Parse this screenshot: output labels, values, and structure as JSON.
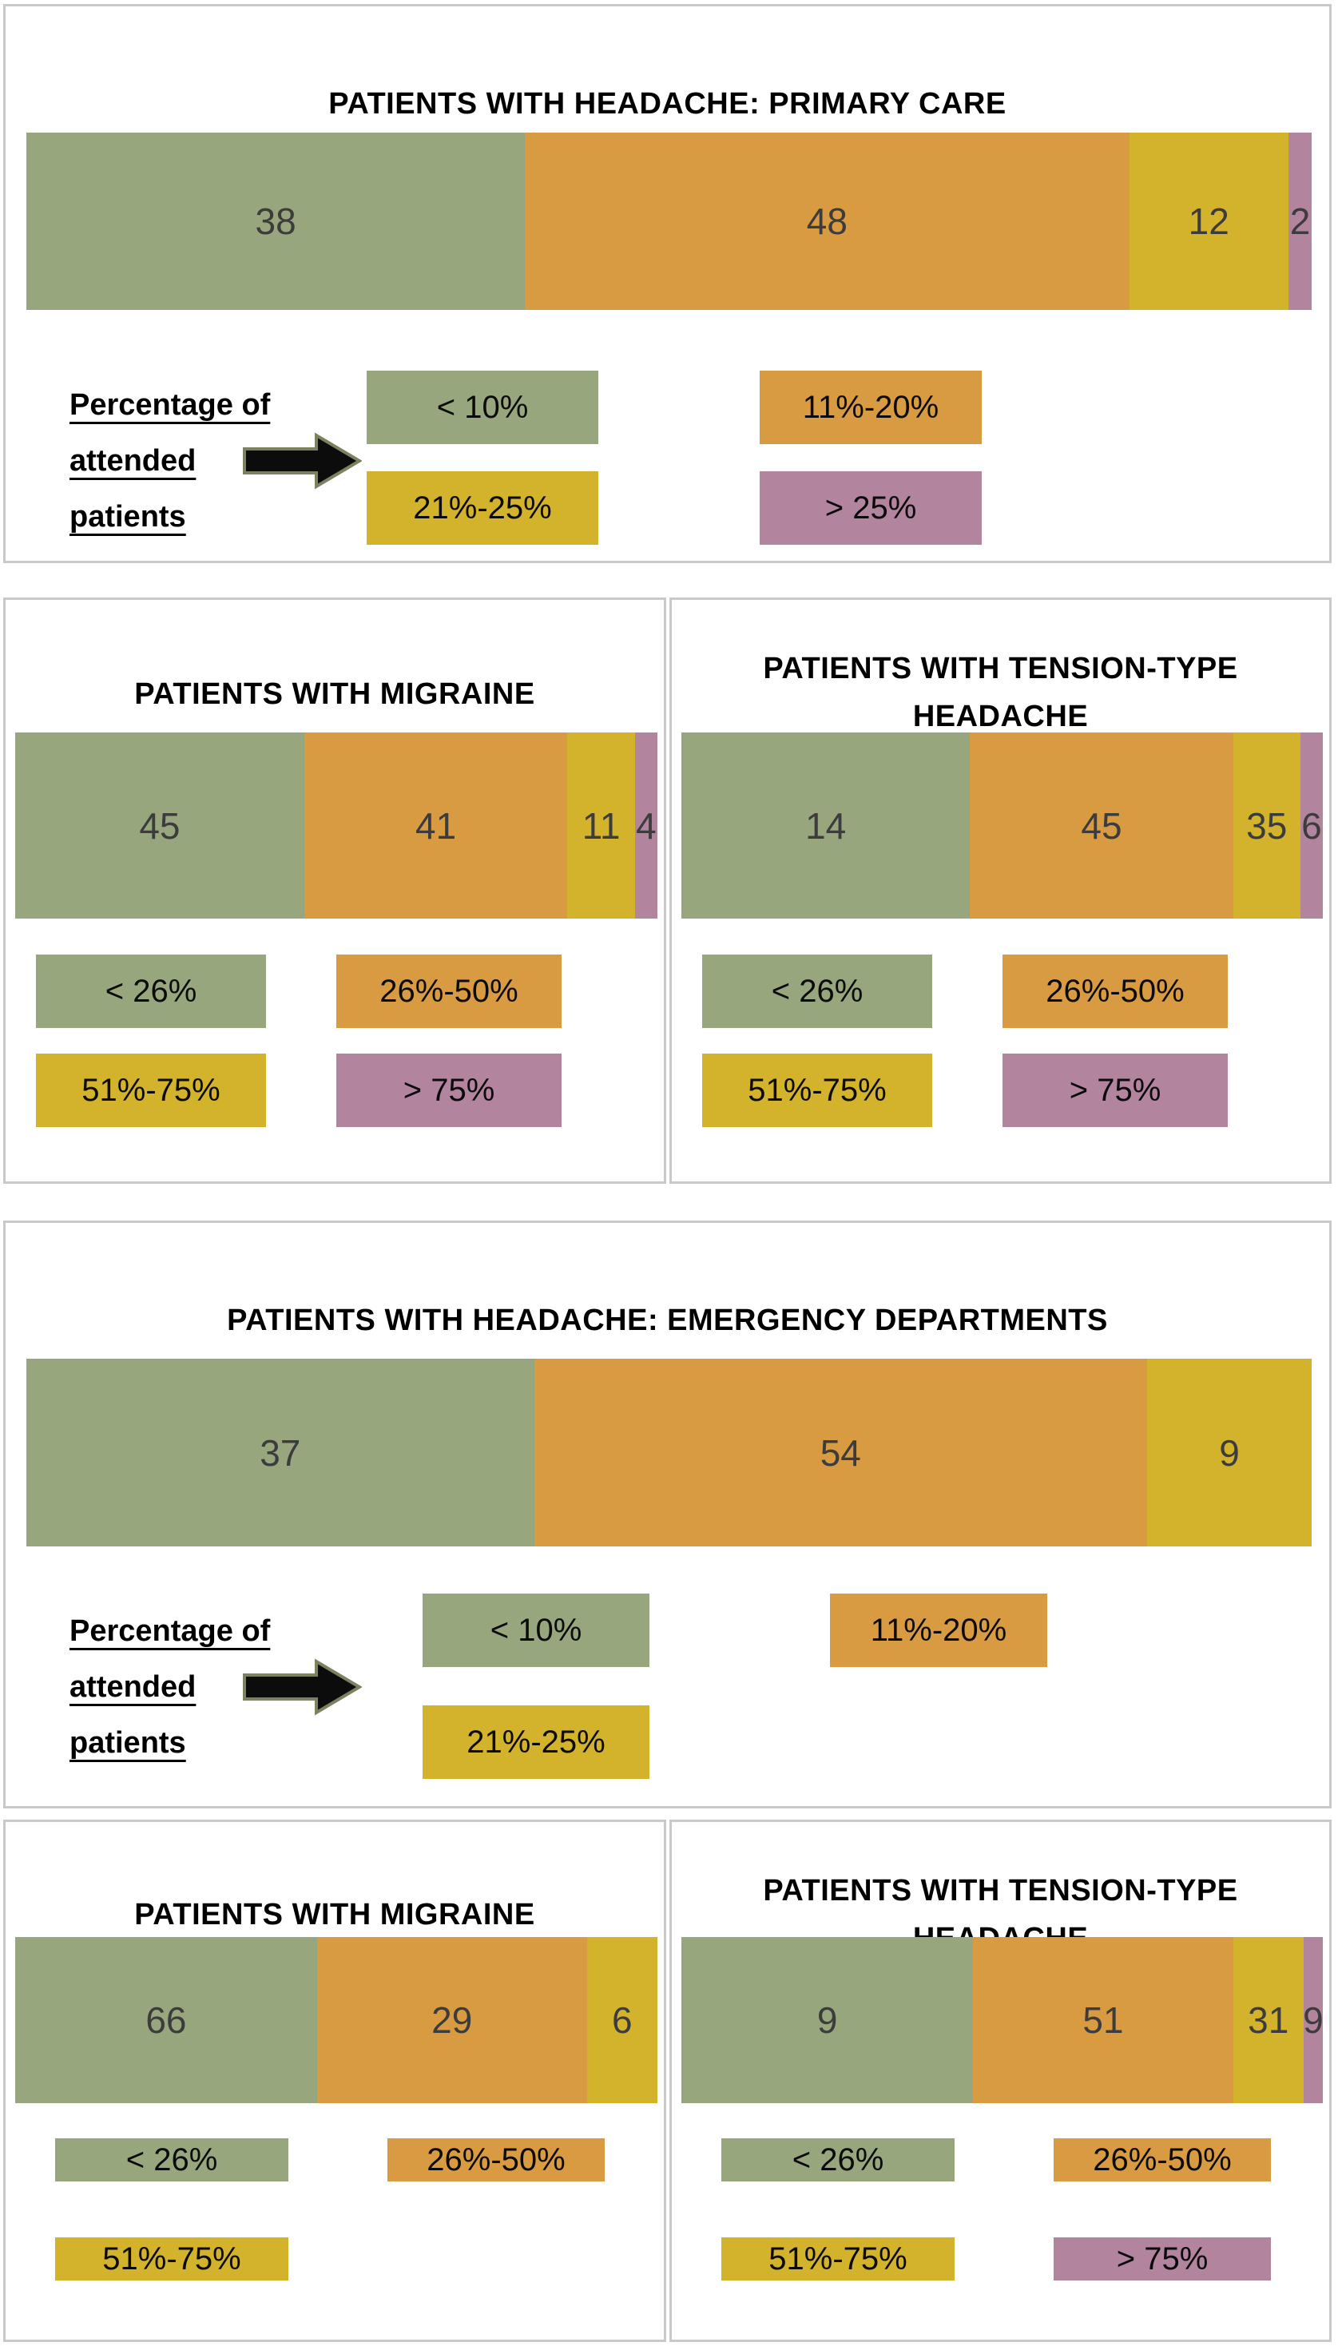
{
  "colors": {
    "green": "#97A67C",
    "orange": "#D89B41",
    "yellow": "#D3B32B",
    "purple": "#B2849E",
    "number_text": "#3C3C3C",
    "arrow_fill": "#0C0C0C",
    "arrow_outline": "#7C8160",
    "panel_border": "#C9C9C9"
  },
  "legend_intro": {
    "lines": [
      "Percentage of",
      "attended",
      "patients"
    ]
  },
  "chart_data": [
    {
      "type": "bar",
      "orientation": "horizontal_stacked",
      "title": "PATIENTS WITH HEADACHE: PRIMARY CARE",
      "legend_title": "Percentage of attended patients",
      "series": [
        {
          "label": "< 10%",
          "value": 38,
          "color": "green",
          "display_width_pct": 38.8
        },
        {
          "label": "11%-20%",
          "value": 48,
          "color": "orange",
          "display_width_pct": 47.0
        },
        {
          "label": "21%-25%",
          "value": 12,
          "color": "yellow",
          "display_width_pct": 12.4
        },
        {
          "label": "> 25%",
          "value": 2,
          "color": "purple",
          "display_width_pct": 1.8
        }
      ],
      "legend": [
        {
          "label": "< 10%",
          "color": "green"
        },
        {
          "label": "21%-25%",
          "color": "yellow"
        },
        {
          "label": "11%-20%",
          "color": "orange"
        },
        {
          "label": "> 25%",
          "color": "purple"
        }
      ],
      "layout_hints": {
        "legend_columns": 2,
        "legend_order": "column-major",
        "values_shown_on_segments": true
      }
    },
    {
      "type": "bar",
      "orientation": "horizontal_stacked",
      "title": "PATIENTS WITH MIGRAINE",
      "series": [
        {
          "label": "< 26%",
          "value": 45,
          "color": "green",
          "display_width_pct": 45.0
        },
        {
          "label": "26%-50%",
          "value": 41,
          "color": "orange",
          "display_width_pct": 41.0
        },
        {
          "label": "51%-75%",
          "value": 11,
          "color": "yellow",
          "display_width_pct": 10.5
        },
        {
          "label": "> 75%",
          "value": 4,
          "color": "purple",
          "display_width_pct": 3.5
        }
      ],
      "legend": [
        {
          "label": "< 26%",
          "color": "green"
        },
        {
          "label": "51%-75%",
          "color": "yellow"
        },
        {
          "label": "26%-50%",
          "color": "orange"
        },
        {
          "label": "> 75%",
          "color": "purple"
        }
      ],
      "layout_hints": {
        "legend_columns": 2,
        "legend_order": "column-major",
        "values_shown_on_segments": true
      }
    },
    {
      "type": "bar",
      "orientation": "horizontal_stacked",
      "title": "PATIENTS WITH TENSION-TYPE HEADACHE",
      "series": [
        {
          "label": "< 26%",
          "value": 14,
          "color": "green",
          "display_width_pct": 45.0
        },
        {
          "label": "26%-50%",
          "value": 45,
          "color": "orange",
          "display_width_pct": 41.0
        },
        {
          "label": "51%-75%",
          "value": 35,
          "color": "yellow",
          "display_width_pct": 10.5
        },
        {
          "label": "> 75%",
          "value": 6,
          "color": "purple",
          "display_width_pct": 3.5
        }
      ],
      "legend": [
        {
          "label": "< 26%",
          "color": "green"
        },
        {
          "label": "51%-75%",
          "color": "yellow"
        },
        {
          "label": "26%-50%",
          "color": "orange"
        },
        {
          "label": "> 75%",
          "color": "purple"
        }
      ],
      "layout_hints": {
        "legend_columns": 2,
        "legend_order": "column-major",
        "values_shown_on_segments": true
      }
    },
    {
      "type": "bar",
      "orientation": "horizontal_stacked",
      "title": "PATIENTS WITH HEADACHE: EMERGENCY DEPARTMENTS",
      "legend_title": "Percentage of attended patients",
      "series": [
        {
          "label": "< 10%",
          "value": 37,
          "color": "green",
          "display_width_pct": 39.5
        },
        {
          "label": "11%-20%",
          "value": 54,
          "color": "orange",
          "display_width_pct": 47.7
        },
        {
          "label": "21%-25%",
          "value": 9,
          "color": "yellow",
          "display_width_pct": 12.8
        }
      ],
      "legend": [
        {
          "label": "< 10%",
          "color": "green"
        },
        {
          "label": "21%-25%",
          "color": "yellow"
        },
        {
          "label": "11%-20%",
          "color": "orange"
        }
      ],
      "layout_hints": {
        "legend_columns": 2,
        "legend_order": "column-major",
        "values_shown_on_segments": true
      }
    },
    {
      "type": "bar",
      "orientation": "horizontal_stacked",
      "title": "PATIENTS WITH MIGRAINE",
      "series": [
        {
          "label": "< 26%",
          "value": 66,
          "color": "green",
          "display_width_pct": 47.0
        },
        {
          "label": "26%-50%",
          "value": 29,
          "color": "orange",
          "display_width_pct": 42.0
        },
        {
          "label": "51%-75%",
          "value": 6,
          "color": "yellow",
          "display_width_pct": 11.0
        }
      ],
      "legend": [
        {
          "label": "< 26%",
          "color": "green"
        },
        {
          "label": "51%-75%",
          "color": "yellow"
        },
        {
          "label": "26%-50%",
          "color": "orange"
        }
      ],
      "layout_hints": {
        "legend_columns": 2,
        "legend_order": "column-major",
        "values_shown_on_segments": true
      }
    },
    {
      "type": "bar",
      "orientation": "horizontal_stacked",
      "title": "PATIENTS WITH TENSION-TYPE HEADACHE",
      "series": [
        {
          "label": "< 26%",
          "value": 9,
          "color": "green",
          "display_width_pct": 45.5
        },
        {
          "label": "26%-50%",
          "value": 51,
          "color": "orange",
          "display_width_pct": 40.5
        },
        {
          "label": "51%-75%",
          "value": 31,
          "color": "yellow",
          "display_width_pct": 11.0
        },
        {
          "label": "> 75%",
          "value": 9,
          "color": "purple",
          "display_width_pct": 3.0
        }
      ],
      "legend": [
        {
          "label": "< 26%",
          "color": "green"
        },
        {
          "label": "51%-75%",
          "color": "yellow"
        },
        {
          "label": "26%-50%",
          "color": "orange"
        },
        {
          "label": "> 75%",
          "color": "purple"
        }
      ],
      "layout_hints": {
        "legend_columns": 2,
        "legend_order": "column-major",
        "values_shown_on_segments": true
      }
    }
  ]
}
